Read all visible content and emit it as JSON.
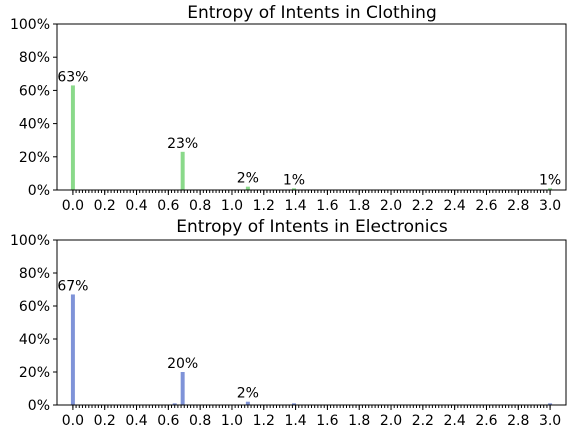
{
  "chart_data": [
    {
      "type": "bar",
      "title": "Entropy of Intents in Clothing",
      "xlabel": "",
      "ylabel": "",
      "xlim": [
        -0.1,
        3.1
      ],
      "ylim": [
        0,
        100
      ],
      "bar_width": 0.025,
      "color": "#8ad98a",
      "yticks": [
        0,
        20,
        40,
        60,
        80,
        100
      ],
      "ytick_labels": [
        "0%",
        "20%",
        "40%",
        "60%",
        "80%",
        "100%"
      ],
      "xticks": [
        0.0,
        0.2,
        0.4,
        0.6,
        0.8,
        1.0,
        1.2,
        1.4,
        1.6,
        1.8,
        2.0,
        2.2,
        2.4,
        2.6,
        2.8,
        3.0
      ],
      "xtick_labels": [
        "0.0",
        "0.2",
        "0.4",
        "0.6",
        "0.8",
        "1.0",
        "1.2",
        "1.4",
        "1.6",
        "1.8",
        "2.0",
        "2.2",
        "2.4",
        "2.6",
        "2.8",
        "3.0"
      ],
      "x": [
        0.0,
        0.69,
        1.1,
        1.39,
        3.0
      ],
      "values": [
        63,
        23,
        2,
        1,
        1
      ],
      "data_labels": [
        "63%",
        "23%",
        "2%",
        "1%",
        "1%"
      ]
    },
    {
      "type": "bar",
      "title": "Entropy of Intents in Electronics",
      "xlabel": "",
      "ylabel": "",
      "xlim": [
        -0.1,
        3.1
      ],
      "ylim": [
        0,
        100
      ],
      "bar_width": 0.025,
      "color": "#7f93d8",
      "yticks": [
        0,
        20,
        40,
        60,
        80,
        100
      ],
      "ytick_labels": [
        "0%",
        "20%",
        "40%",
        "60%",
        "80%",
        "100%"
      ],
      "xticks": [
        0.0,
        0.2,
        0.4,
        0.6,
        0.8,
        1.0,
        1.2,
        1.4,
        1.6,
        1.8,
        2.0,
        2.2,
        2.4,
        2.6,
        2.8,
        3.0
      ],
      "xtick_labels": [
        "0.0",
        "0.2",
        "0.4",
        "0.6",
        "0.8",
        "1.0",
        "1.2",
        "1.4",
        "1.6",
        "1.8",
        "2.0",
        "2.2",
        "2.4",
        "2.6",
        "2.8",
        "3.0"
      ],
      "x": [
        0.0,
        0.64,
        0.69,
        1.1,
        1.39,
        3.0
      ],
      "values": [
        67,
        1,
        20,
        2,
        1,
        1
      ],
      "data_labels": [
        "67%",
        "",
        "20%",
        "2%",
        "",
        ""
      ]
    }
  ]
}
